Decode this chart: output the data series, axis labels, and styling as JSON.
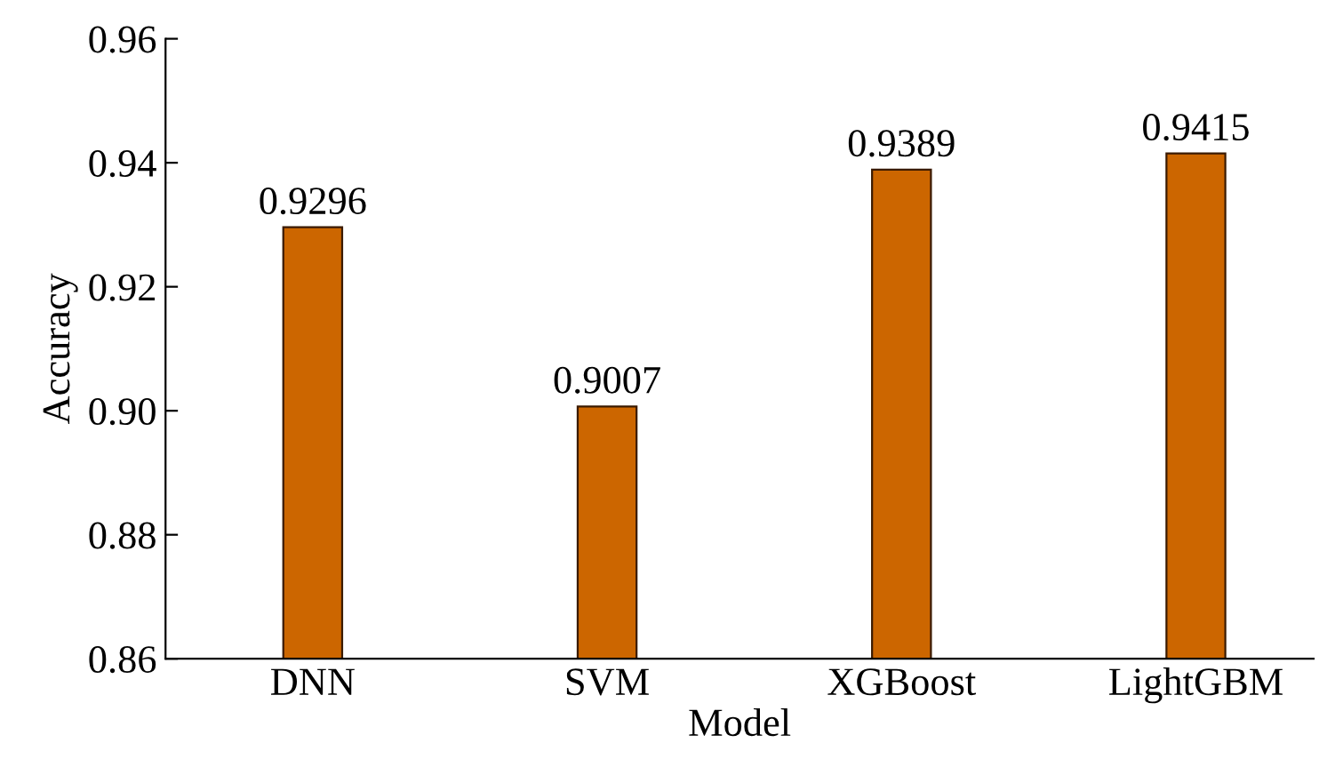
{
  "chart_data": {
    "type": "bar",
    "xlabel": "Model",
    "ylabel": "Accuracy",
    "categories": [
      "DNN",
      "SVM",
      "XGBoost",
      "LightGBM"
    ],
    "values": [
      0.9296,
      0.9007,
      0.9389,
      0.9415
    ],
    "color": "#cc6600",
    "data_labels": true,
    "ylim": [
      0.86,
      0.96
    ],
    "yticks": [
      "0.86",
      "0.88",
      "0.90",
      "0.92",
      "0.94",
      "0.96"
    ],
    "grid": false,
    "legend": false
  }
}
